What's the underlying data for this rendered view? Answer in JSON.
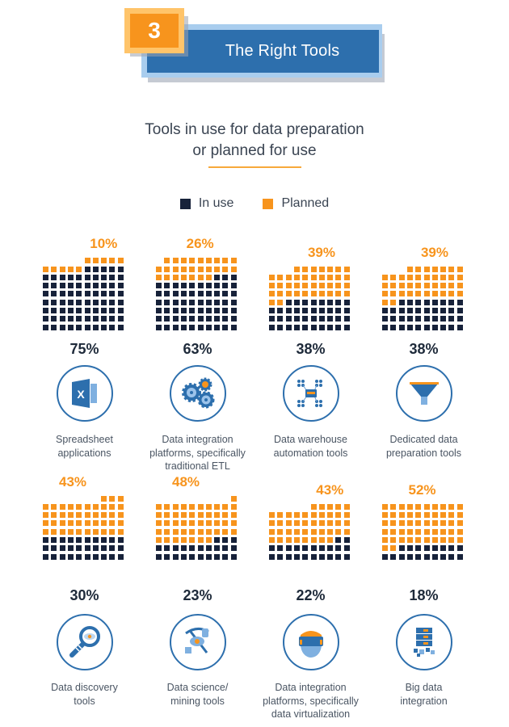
{
  "header": {
    "number": "3",
    "title": "The Right Tools"
  },
  "subtitle": {
    "line1": "Tools in use for data preparation",
    "line2": "or planned for use"
  },
  "legend": {
    "in_use": "In use",
    "planned": "Planned"
  },
  "colors": {
    "in_use": "#17223a",
    "planned": "#f7941d",
    "accent_blue": "#2d6fad",
    "accent_orange": "#f7941d"
  },
  "tools": [
    {
      "label": "Spreadsheet applications",
      "label_lines": [
        "Spreadsheet",
        "applications"
      ],
      "in_use_label": "75%",
      "planned_label": "10%",
      "icon": "excel-icon"
    },
    {
      "label": "Data integration platforms, specifically traditional ETL",
      "label_lines": [
        "Data integration",
        "platforms, specifically",
        "traditional ETL"
      ],
      "in_use_label": "63%",
      "planned_label": "26%",
      "icon": "gears-icon"
    },
    {
      "label": "Data warehouse automation tools",
      "label_lines": [
        "Data warehouse",
        "automation tools"
      ],
      "in_use_label": "38%",
      "planned_label": "39%",
      "icon": "warehouse-network-icon"
    },
    {
      "label": "Dedicated data preparation tools",
      "label_lines": [
        "Dedicated data",
        "preparation tools"
      ],
      "in_use_label": "38%",
      "planned_label": "39%",
      "icon": "funnel-icon"
    },
    {
      "label": "Data discovery tools",
      "label_lines": [
        "Data discovery",
        "tools"
      ],
      "in_use_label": "30%",
      "planned_label": "43%",
      "icon": "magnifier-eye-icon"
    },
    {
      "label": "Data science/ mining tools",
      "label_lines": [
        "Data science/",
        "mining tools"
      ],
      "in_use_label": "23%",
      "planned_label": "48%",
      "icon": "pickaxe-eye-icon"
    },
    {
      "label": "Data integration platforms, specifically data virtualization",
      "label_lines": [
        "Data integration",
        "platforms, specifically",
        "data virtualization"
      ],
      "in_use_label": "22%",
      "planned_label": "43%",
      "icon": "vr-headset-icon"
    },
    {
      "label": "Big data integration",
      "label_lines": [
        "Big data",
        "integration"
      ],
      "in_use_label": "18%",
      "planned_label": "52%",
      "icon": "server-stack-icon"
    }
  ],
  "chart_data": {
    "type": "waffle",
    "title": "Tools in use for data preparation or planned for use",
    "units": "percent of respondents, 1 square = 1%",
    "legend": [
      "In use",
      "Planned"
    ],
    "legend_position": "top",
    "categories": [
      "Spreadsheet applications",
      "Data integration platforms, specifically traditional ETL",
      "Data warehouse automation tools",
      "Dedicated data preparation tools",
      "Data discovery tools",
      "Data science/ mining tools",
      "Data integration platforms, specifically data virtualization",
      "Big data integration"
    ],
    "series": [
      {
        "name": "In use",
        "values": [
          75,
          63,
          38,
          38,
          30,
          23,
          22,
          18
        ]
      },
      {
        "name": "Planned",
        "values": [
          10,
          26,
          39,
          39,
          43,
          48,
          43,
          52
        ]
      }
    ]
  }
}
